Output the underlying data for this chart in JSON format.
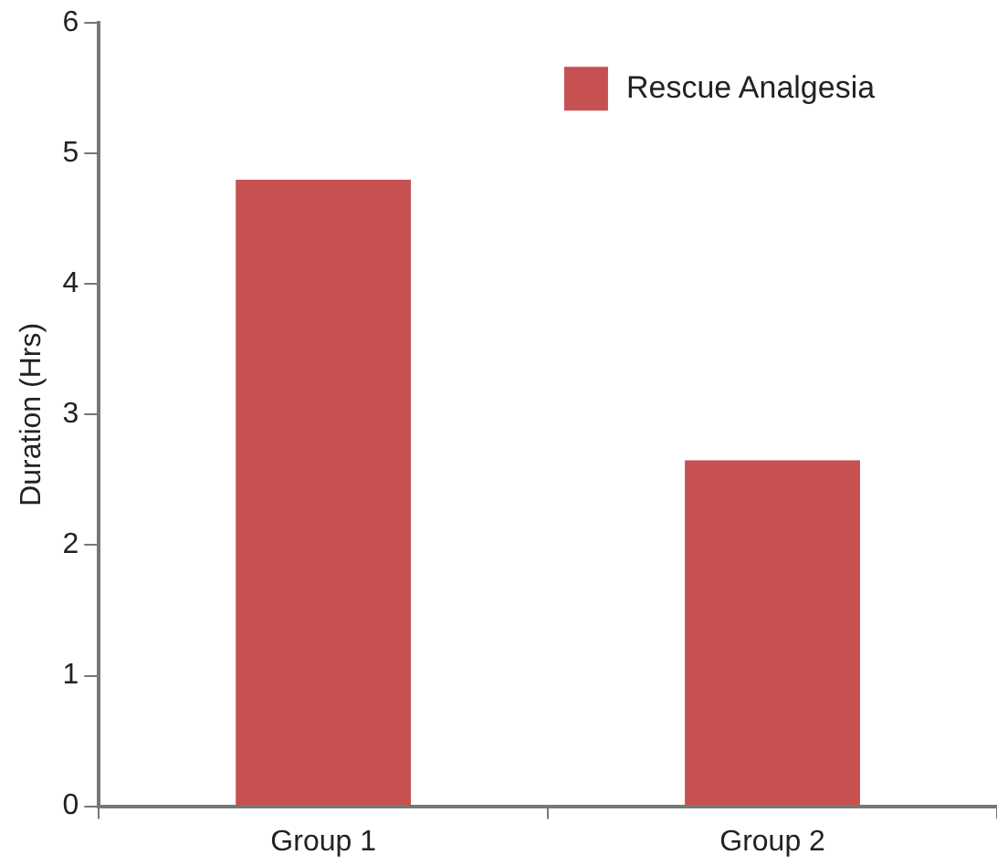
{
  "chart_data": {
    "type": "bar",
    "ylabel": "Duration (Hrs)",
    "categories": [
      "Group 1",
      "Group 2"
    ],
    "series": [
      {
        "name": "Rescue Analgesia",
        "color": "#c65150",
        "values": [
          4.8,
          2.65
        ]
      }
    ],
    "ylim": [
      0,
      6
    ],
    "yticks": [
      0,
      1,
      2,
      3,
      4,
      5,
      6
    ],
    "grid": false,
    "legend": "top right"
  }
}
